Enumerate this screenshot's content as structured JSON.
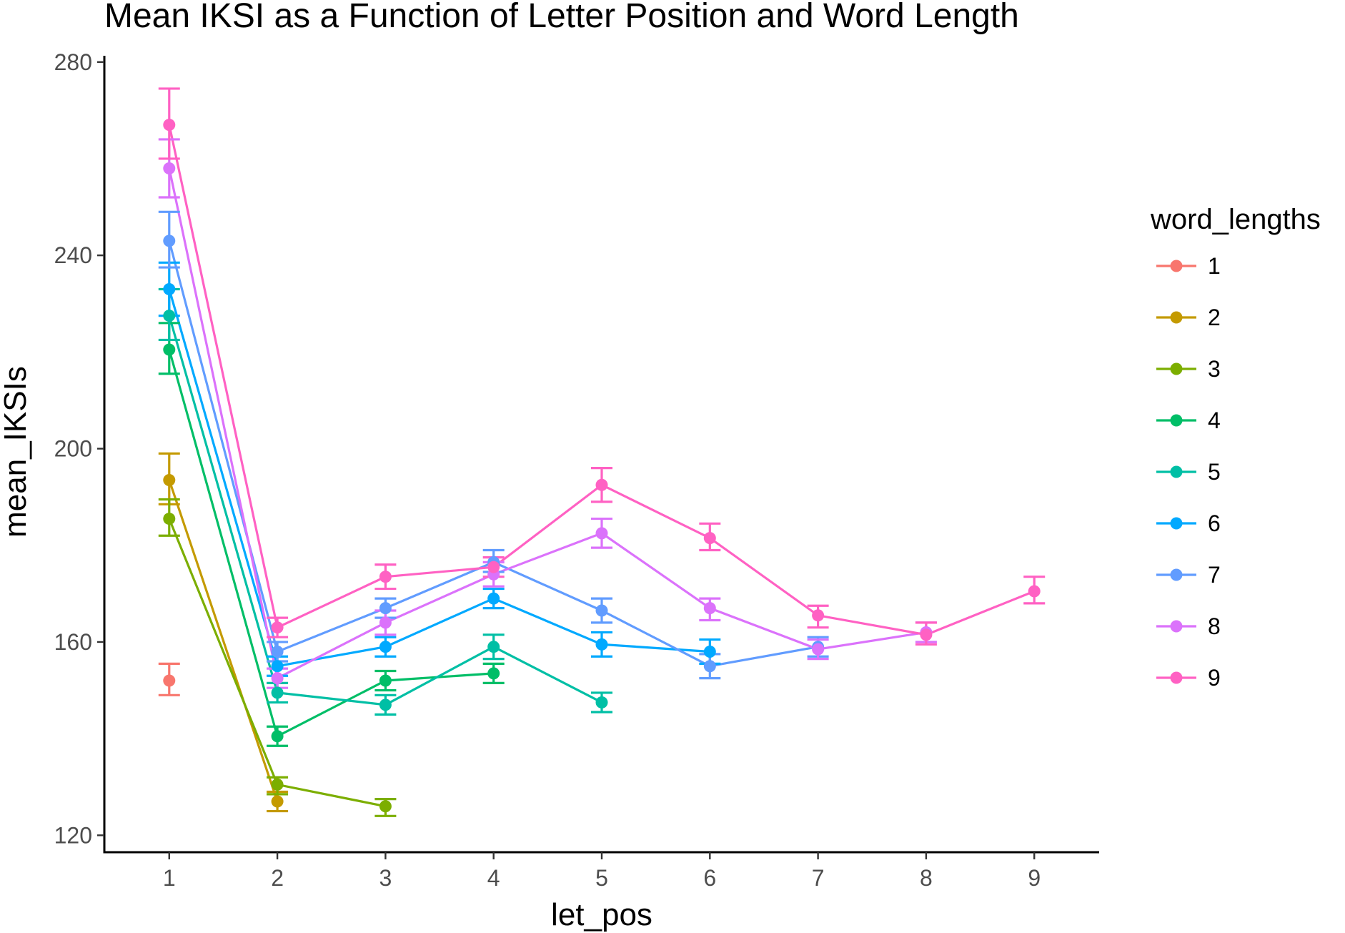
{
  "chart_data": {
    "type": "line",
    "title": "Mean IKSI as a Function of Letter Position and Word Length",
    "xlabel": "let_pos",
    "ylabel": "mean_IKSIs",
    "x_ticks": [
      1,
      2,
      3,
      4,
      5,
      6,
      7,
      8,
      9
    ],
    "y_ticks": [
      120,
      160,
      200,
      240,
      280
    ],
    "xlim": [
      0.4,
      9.6
    ],
    "ylim": [
      116.5,
      281
    ],
    "grid": false,
    "legend": {
      "title": "word_lengths",
      "placement": "right"
    },
    "series": [
      {
        "name": "1",
        "color": "#F8766D",
        "points": [
          {
            "x": 1,
            "y": 152,
            "lo": 149,
            "hi": 155.5
          }
        ]
      },
      {
        "name": "2",
        "color": "#C49A00",
        "points": [
          {
            "x": 1,
            "y": 193.5,
            "lo": 188.5,
            "hi": 199
          },
          {
            "x": 2,
            "y": 127,
            "lo": 125,
            "hi": 129
          }
        ]
      },
      {
        "name": "3",
        "color": "#7CAE00",
        "points": [
          {
            "x": 1,
            "y": 185.5,
            "lo": 182,
            "hi": 189.5
          },
          {
            "x": 2,
            "y": 130.5,
            "lo": 128.5,
            "hi": 132
          },
          {
            "x": 3,
            "y": 126,
            "lo": 124,
            "hi": 127.5
          }
        ]
      },
      {
        "name": "4",
        "color": "#00BE67",
        "points": [
          {
            "x": 1,
            "y": 220.5,
            "lo": 215.5,
            "hi": 226
          },
          {
            "x": 2,
            "y": 140.5,
            "lo": 138.5,
            "hi": 142.5
          },
          {
            "x": 3,
            "y": 152,
            "lo": 150,
            "hi": 154
          },
          {
            "x": 4,
            "y": 153.5,
            "lo": 151.5,
            "hi": 155.5
          }
        ]
      },
      {
        "name": "5",
        "color": "#00BFA5",
        "points": [
          {
            "x": 1,
            "y": 227.5,
            "lo": 222.5,
            "hi": 233
          },
          {
            "x": 2,
            "y": 149.5,
            "lo": 147.5,
            "hi": 151.5
          },
          {
            "x": 3,
            "y": 147,
            "lo": 145,
            "hi": 149
          },
          {
            "x": 4,
            "y": 159,
            "lo": 156.5,
            "hi": 161.5
          },
          {
            "x": 5,
            "y": 147.5,
            "lo": 145.5,
            "hi": 149.5
          }
        ]
      },
      {
        "name": "6",
        "color": "#00A9FF",
        "points": [
          {
            "x": 1,
            "y": 233,
            "lo": 227.5,
            "hi": 238.5
          },
          {
            "x": 2,
            "y": 155,
            "lo": 153,
            "hi": 157
          },
          {
            "x": 3,
            "y": 159,
            "lo": 157,
            "hi": 161
          },
          {
            "x": 4,
            "y": 169,
            "lo": 167,
            "hi": 171
          },
          {
            "x": 5,
            "y": 159.5,
            "lo": 157,
            "hi": 162
          },
          {
            "x": 6,
            "y": 158,
            "lo": 155.5,
            "hi": 160.5
          }
        ]
      },
      {
        "name": "7",
        "color": "#619CFF",
        "points": [
          {
            "x": 1,
            "y": 243,
            "lo": 237.5,
            "hi": 249
          },
          {
            "x": 2,
            "y": 158,
            "lo": 156,
            "hi": 160
          },
          {
            "x": 3,
            "y": 167,
            "lo": 165,
            "hi": 169
          },
          {
            "x": 4,
            "y": 176.5,
            "lo": 174.5,
            "hi": 179
          },
          {
            "x": 5,
            "y": 166.5,
            "lo": 164,
            "hi": 169
          },
          {
            "x": 6,
            "y": 155,
            "lo": 152.5,
            "hi": 157.5
          },
          {
            "x": 7,
            "y": 159,
            "lo": 157,
            "hi": 161
          }
        ]
      },
      {
        "name": "8",
        "color": "#DB72FB",
        "points": [
          {
            "x": 1,
            "y": 258,
            "lo": 252,
            "hi": 264
          },
          {
            "x": 2,
            "y": 152.5,
            "lo": 150.5,
            "hi": 154.5
          },
          {
            "x": 3,
            "y": 164,
            "lo": 161.5,
            "hi": 166.5
          },
          {
            "x": 4,
            "y": 174,
            "lo": 171.5,
            "hi": 176.5
          },
          {
            "x": 5,
            "y": 182.5,
            "lo": 179.5,
            "hi": 185.5
          },
          {
            "x": 6,
            "y": 167,
            "lo": 164.5,
            "hi": 169
          },
          {
            "x": 7,
            "y": 158.5,
            "lo": 156.5,
            "hi": 160.5
          },
          {
            "x": 8,
            "y": 162,
            "lo": 160,
            "hi": 164
          }
        ]
      },
      {
        "name": "9",
        "color": "#FF61C3",
        "points": [
          {
            "x": 1,
            "y": 267,
            "lo": 260,
            "hi": 274.5
          },
          {
            "x": 2,
            "y": 163,
            "lo": 161,
            "hi": 165
          },
          {
            "x": 3,
            "y": 173.5,
            "lo": 171,
            "hi": 176
          },
          {
            "x": 4,
            "y": 175.5,
            "lo": 173.5,
            "hi": 177.5
          },
          {
            "x": 5,
            "y": 192.5,
            "lo": 189,
            "hi": 196
          },
          {
            "x": 6,
            "y": 181.5,
            "lo": 179,
            "hi": 184.5
          },
          {
            "x": 7,
            "y": 165.5,
            "lo": 163,
            "hi": 167.5
          },
          {
            "x": 8,
            "y": 161.5,
            "lo": 159.5,
            "hi": 164
          },
          {
            "x": 9,
            "y": 170.5,
            "lo": 168,
            "hi": 173.5
          }
        ]
      }
    ]
  }
}
